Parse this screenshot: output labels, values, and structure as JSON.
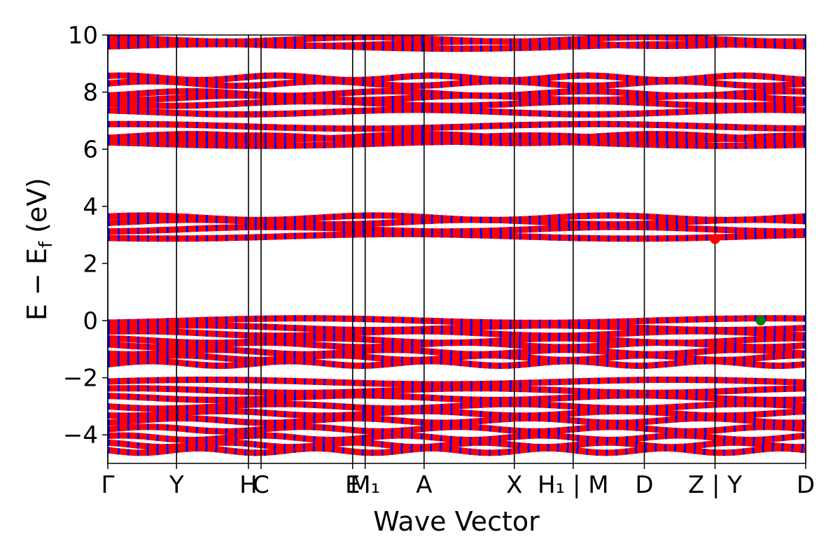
{
  "chart_data": {
    "type": "line",
    "title": "",
    "xlabel": "Wave Vector",
    "ylabel_parts": {
      "main": "E − E",
      "sub": "f",
      "unit": " (eV)"
    },
    "ylim": [
      -5,
      10
    ],
    "yticks": [
      10,
      8,
      6,
      4,
      2,
      0,
      -2,
      -4
    ],
    "ytick_labels": [
      "10",
      "8",
      "6",
      "4",
      "2",
      "0",
      "−2",
      "−4"
    ],
    "xlim": [
      0,
      1
    ],
    "kpath_positions": [
      0,
      0.0985,
      0.2015,
      0.2196,
      0.3508,
      0.3688,
      0.4532,
      0.5825,
      0.6668,
      0.7688,
      0.8701,
      1.0
    ],
    "kpath_labels": [
      "Γ",
      "Y",
      "H",
      "C",
      "E",
      "M₁",
      "A",
      "X",
      "H₁ | M",
      "D",
      "Z | Y",
      "D"
    ],
    "band_colors": [
      "#ff0000",
      "#0000ff"
    ],
    "band_groups": [
      {
        "name": "upper_cluster",
        "levels": [
          9.6,
          9.7,
          9.85
        ]
      },
      {
        "name": "cluster_8",
        "levels": [
          6.8,
          7.3,
          7.6,
          7.8,
          7.95,
          8.3,
          8.5
        ]
      },
      {
        "name": "cluster_6",
        "levels": [
          6.2,
          6.3,
          6.4,
          6.45
        ]
      },
      {
        "name": "cluster_3",
        "levels": [
          2.95,
          3.2,
          3.45,
          3.6
        ]
      },
      {
        "name": "valence_top",
        "levels": [
          0.0,
          -0.25,
          -0.45,
          -0.7,
          -0.85,
          -1.1,
          -1.3,
          -1.5
        ]
      },
      {
        "name": "valence_low",
        "levels": [
          -2.15,
          -2.45,
          -2.7,
          -3.0,
          -3.25,
          -3.5,
          -3.8,
          -4.1,
          -4.35,
          -4.55
        ]
      }
    ],
    "markers": [
      {
        "name": "CBM",
        "x": 0.8701,
        "y": 2.85,
        "color": "#ff0000"
      },
      {
        "name": "VBM",
        "x": 0.9355,
        "y": 0.0,
        "color": "#008000"
      }
    ]
  }
}
